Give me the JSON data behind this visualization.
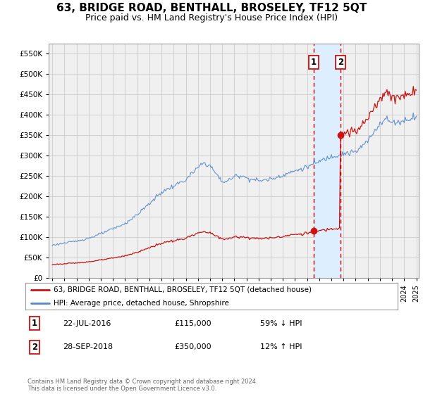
{
  "title": "63, BRIDGE ROAD, BENTHALL, BROSELEY, TF12 5QT",
  "subtitle": "Price paid vs. HM Land Registry's House Price Index (HPI)",
  "title_fontsize": 11,
  "subtitle_fontsize": 9,
  "hpi_color": "#5588cc",
  "price_color": "#cc1111",
  "grid_color": "#cccccc",
  "bg_color": "#ffffff",
  "plot_bg_color": "#f0f0f0",
  "ylim": [
    0,
    575000
  ],
  "yticks": [
    0,
    50000,
    100000,
    150000,
    200000,
    250000,
    300000,
    350000,
    400000,
    450000,
    500000,
    550000
  ],
  "sale1_date": 2016.55,
  "sale1_price": 115000,
  "sale1_label": "1",
  "sale2_date": 2018.74,
  "sale2_price": 350000,
  "sale2_label": "2",
  "shade_color": "#ddeeff",
  "dashed_color": "#cc0000",
  "legend_line1": "63, BRIDGE ROAD, BENTHALL, BROSELEY, TF12 5QT (detached house)",
  "legend_line2": "HPI: Average price, detached house, Shropshire",
  "note1_num": "1",
  "note1_date": "22-JUL-2016",
  "note1_price": "£115,000",
  "note1_rel": "59% ↓ HPI",
  "note2_num": "2",
  "note2_date": "28-SEP-2018",
  "note2_price": "£350,000",
  "note2_rel": "12% ↑ HPI",
  "footer": "Contains HM Land Registry data © Crown copyright and database right 2024.\nThis data is licensed under the Open Government Licence v3.0.",
  "xlim_left": 1994.7,
  "xlim_right": 2025.2
}
